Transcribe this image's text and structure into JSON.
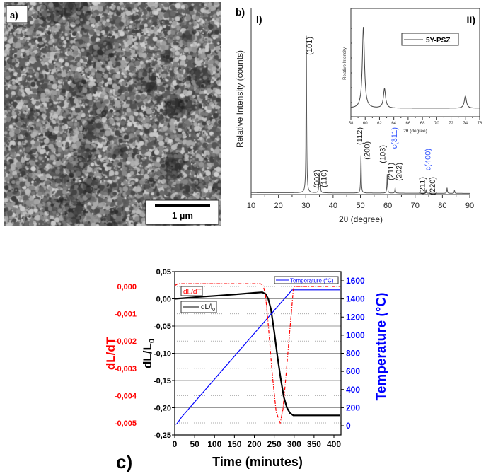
{
  "panel_a": {
    "label": "a)",
    "scale_bar": "1 µm"
  },
  "chart_data": [
    {
      "type": "line",
      "panel_label": "b)",
      "sub_label": "I)",
      "xlabel": "2θ (degree)",
      "ylabel": "Relative Intensity (counts)",
      "xlim": [
        10,
        90
      ],
      "xticks": [
        "10",
        "20",
        "30",
        "40",
        "50",
        "60",
        "70",
        "80",
        "90"
      ],
      "y_tick_labels_shown": false,
      "peaks": [
        {
          "x": 30.2,
          "y": 100
        },
        {
          "x": 34.9,
          "y": 12
        },
        {
          "x": 35.3,
          "y": 6
        },
        {
          "x": 50.2,
          "y": 24
        },
        {
          "x": 59.8,
          "y": 12
        },
        {
          "x": 62.7,
          "y": 3.5
        },
        {
          "x": 74.0,
          "y": 2
        },
        {
          "x": 81.7,
          "y": 3.5
        },
        {
          "x": 84.4,
          "y": 1.8
        }
      ],
      "annotations": [
        {
          "text": "(101)",
          "x": 31.2,
          "color": "#222222"
        },
        {
          "text": "(002)",
          "x": 34.0,
          "color": "#222222"
        },
        {
          "text": "(110)",
          "x": 36.5,
          "color": "#222222"
        },
        {
          "text": "(112)",
          "x": 49.6,
          "color": "#222222"
        },
        {
          "text": "(200)",
          "x": 52.3,
          "color": "#222222"
        },
        {
          "text": "(103)",
          "x": 58.0,
          "color": "#222222"
        },
        {
          "text": "(211)",
          "x": 61.0,
          "color": "#222222"
        },
        {
          "text": "c(311)",
          "x": 62.3,
          "color": "#3355ff"
        },
        {
          "text": "(202)",
          "x": 64.0,
          "color": "#222222"
        },
        {
          "text": "(211)",
          "x": 72.5,
          "color": "#222222"
        },
        {
          "text": "c(400)",
          "x": 74.6,
          "color": "#3355ff"
        },
        {
          "text": "(220)",
          "x": 76.3,
          "color": "#222222"
        }
      ]
    },
    {
      "type": "line",
      "sub_label": "II)",
      "xlabel": "2θ (degree)",
      "ylabel": "Relative Intensity",
      "xlim": [
        58,
        76
      ],
      "xticks": [
        "58",
        "60",
        "62",
        "64",
        "66",
        "68",
        "70",
        "72",
        "74",
        "76"
      ],
      "legend": {
        "entries": [
          "5Y-PSZ"
        ],
        "placement": "top-right"
      },
      "peaks": [
        {
          "x": 59.75,
          "y": 100
        },
        {
          "x": 62.7,
          "y": 24
        },
        {
          "x": 74.0,
          "y": 15
        }
      ]
    },
    {
      "type": "line",
      "panel_label": "c)",
      "xlabel": "Time (minutes)",
      "xlim": [
        0,
        418
      ],
      "xticks": [
        "0",
        "50",
        "100",
        "150",
        "200",
        "250",
        "300",
        "350",
        "400"
      ],
      "y_left": {
        "label": "dL/L",
        "label_sub": "0",
        "ylim": [
          -0.25,
          0.05
        ],
        "ticks": [
          "0,05",
          "0,00",
          "-0,05",
          "-0,10",
          "-0,15",
          "-0,20",
          "-0,25"
        ],
        "color": "#000000"
      },
      "y_left_outer": {
        "label": "dL/dT",
        "ticks": [
          "0,000",
          "-0,001",
          "-0,002",
          "-0,003",
          "-0,004",
          "-0,005"
        ],
        "color": "#ff0000"
      },
      "y_right": {
        "label": "Temperature (°C)",
        "ylim": [
          0,
          1600
        ],
        "ticks": [
          "1600",
          "1400",
          "1200",
          "1000",
          "800",
          "600",
          "400",
          "200",
          "0"
        ],
        "color": "#0000ff"
      },
      "legend": {
        "temperature": "Temperature (°C)",
        "dLdT": "dL/dT",
        "dLl0": "dL/l",
        "dLl0_sub": "0"
      },
      "series": [
        {
          "name": "dL/l0",
          "color": "#000000",
          "axis": "left",
          "points": [
            [
              0,
              0
            ],
            [
              50,
              0.003
            ],
            [
              100,
              0.0055
            ],
            [
              150,
              0.008
            ],
            [
              200,
              0.011
            ],
            [
              220,
              0.012
            ],
            [
              228,
              0.009
            ],
            [
              235,
              0.0
            ],
            [
              242,
              -0.02
            ],
            [
              250,
              -0.06
            ],
            [
              258,
              -0.105
            ],
            [
              266,
              -0.145
            ],
            [
              274,
              -0.18
            ],
            [
              282,
              -0.2
            ],
            [
              290,
              -0.21
            ],
            [
              298,
              -0.214
            ],
            [
              415,
              -0.214
            ]
          ]
        },
        {
          "name": "Temperature (°C)",
          "color": "#0000ff",
          "axis": "right",
          "points": [
            [
              0,
              15
            ],
            [
              5,
              20
            ],
            [
              10,
              50
            ],
            [
              18,
              100
            ],
            [
              295,
              1500
            ],
            [
              415,
              1500
            ]
          ]
        },
        {
          "name": "dL/dT",
          "color": "#ff0000",
          "axis": "outer_left",
          "points": [
            [
              0,
              3e-05
            ],
            [
              8,
              0.0001
            ],
            [
              215,
              0.0001
            ],
            [
              222,
              5e-05
            ],
            [
              228,
              -0.0003
            ],
            [
              235,
              -0.0014
            ],
            [
              245,
              -0.0032
            ],
            [
              255,
              -0.0046
            ],
            [
              265,
              -0.005
            ],
            [
              272,
              -0.0045
            ],
            [
              280,
              -0.0032
            ],
            [
              288,
              -0.0018
            ],
            [
              294,
              -0.0008
            ],
            [
              298,
              -0.0001
            ],
            [
              302,
              0.0
            ],
            [
              415,
              0.0
            ]
          ]
        }
      ]
    }
  ]
}
